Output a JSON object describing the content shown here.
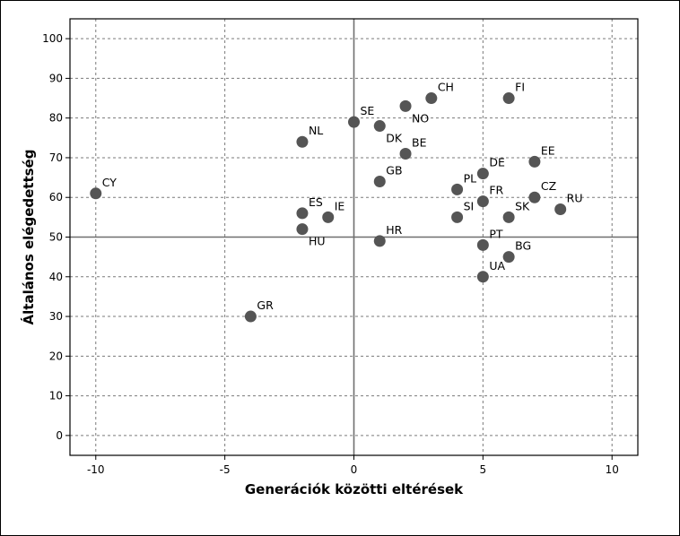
{
  "chart_data": {
    "type": "scatter",
    "xlabel": "Generációk közötti eltérések",
    "ylabel": "Általános elégedettség",
    "xlim": [
      -11,
      11
    ],
    "ylim": [
      -5,
      105
    ],
    "x_ticks": [
      -10,
      -5,
      0,
      5,
      10
    ],
    "y_ticks": [
      0,
      10,
      20,
      30,
      40,
      50,
      60,
      70,
      80,
      90,
      100
    ],
    "grid": true,
    "reference_lines": {
      "x": 0,
      "y": 50
    },
    "point_color": "#555555",
    "points": [
      {
        "label": "CY",
        "x": -10,
        "y": 61,
        "label_pos": "upper-right"
      },
      {
        "label": "GR",
        "x": -4,
        "y": 30,
        "label_pos": "upper-right"
      },
      {
        "label": "NL",
        "x": -2,
        "y": 74,
        "label_pos": "upper-right"
      },
      {
        "label": "ES",
        "x": -2,
        "y": 56,
        "label_pos": "upper-right"
      },
      {
        "label": "HU",
        "x": -2,
        "y": 52,
        "label_pos": "lower-right"
      },
      {
        "label": "IE",
        "x": -1,
        "y": 55,
        "label_pos": "upper-right"
      },
      {
        "label": "SE",
        "x": 0,
        "y": 79,
        "label_pos": "upper-right"
      },
      {
        "label": "DK",
        "x": 1,
        "y": 78,
        "label_pos": "lower-right"
      },
      {
        "label": "GB",
        "x": 1,
        "y": 64,
        "label_pos": "upper-right"
      },
      {
        "label": "HR",
        "x": 1,
        "y": 49,
        "label_pos": "upper-right"
      },
      {
        "label": "NO",
        "x": 2,
        "y": 83,
        "label_pos": "lower-right"
      },
      {
        "label": "BE",
        "x": 2,
        "y": 71,
        "label_pos": "upper-right"
      },
      {
        "label": "CH",
        "x": 3,
        "y": 85,
        "label_pos": "upper-right"
      },
      {
        "label": "PL",
        "x": 4,
        "y": 62,
        "label_pos": "upper-right"
      },
      {
        "label": "SI",
        "x": 4,
        "y": 55,
        "label_pos": "upper-right"
      },
      {
        "label": "DE",
        "x": 5,
        "y": 66,
        "label_pos": "upper-right"
      },
      {
        "label": "FR",
        "x": 5,
        "y": 59,
        "label_pos": "upper-right"
      },
      {
        "label": "PT",
        "x": 5,
        "y": 48,
        "label_pos": "upper-right"
      },
      {
        "label": "UA",
        "x": 5,
        "y": 40,
        "label_pos": "upper-right"
      },
      {
        "label": "FI",
        "x": 6,
        "y": 85,
        "label_pos": "upper-right"
      },
      {
        "label": "SK",
        "x": 6,
        "y": 55,
        "label_pos": "upper-right"
      },
      {
        "label": "BG",
        "x": 6,
        "y": 45,
        "label_pos": "upper-right"
      },
      {
        "label": "EE",
        "x": 7,
        "y": 69,
        "label_pos": "upper-right"
      },
      {
        "label": "CZ",
        "x": 7,
        "y": 60,
        "label_pos": "upper-right"
      },
      {
        "label": "RU",
        "x": 8,
        "y": 57,
        "label_pos": "upper-right"
      }
    ]
  }
}
